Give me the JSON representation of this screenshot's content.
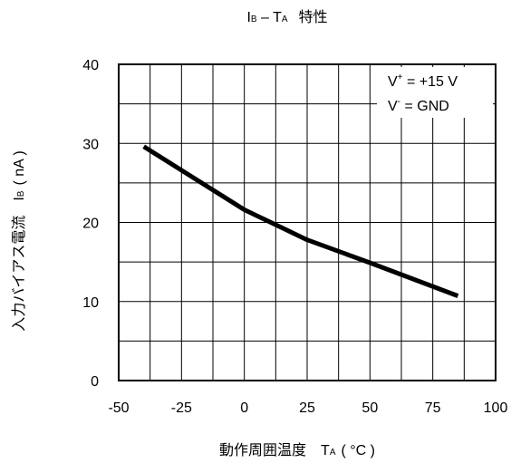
{
  "chart_data": {
    "type": "line",
    "title": {
      "sym1": "I",
      "sub1": "B",
      "dash": " – ",
      "sym2": "T",
      "sub2": "A",
      "suffix": "特性"
    },
    "xlabel": {
      "text": "動作周囲温度",
      "sym": "T",
      "sub": "A",
      "unit": "( °C )"
    },
    "ylabel": {
      "text": "入力バイアス電流",
      "sym": "I",
      "sub": "B",
      "unit": "( nA )"
    },
    "xlim": [
      -50,
      100
    ],
    "ylim": [
      0,
      40
    ],
    "x_ticks": [
      -50,
      -25,
      0,
      25,
      50,
      75,
      100
    ],
    "y_ticks": [
      0,
      10,
      20,
      30,
      40
    ],
    "x_grid": [
      -50,
      -37.5,
      -25,
      -12.5,
      0,
      12.5,
      25,
      37.5,
      50,
      62.5,
      75,
      87.5,
      100
    ],
    "y_grid": [
      0,
      5,
      10,
      15,
      20,
      25,
      30,
      35,
      40
    ],
    "grid": true,
    "legend_box": {
      "placement": "top-right",
      "line1": {
        "base": "V",
        "sup": "+",
        "rest": " = +15 V"
      },
      "line2": {
        "base": "V",
        "sup": "-",
        "rest": " = GND"
      }
    },
    "series": [
      {
        "color": "#000000",
        "x": [
          -40,
          -20,
          0,
          25,
          50,
          85
        ],
        "y": [
          29.6,
          25.6,
          21.6,
          17.8,
          14.9,
          10.7
        ]
      }
    ]
  }
}
